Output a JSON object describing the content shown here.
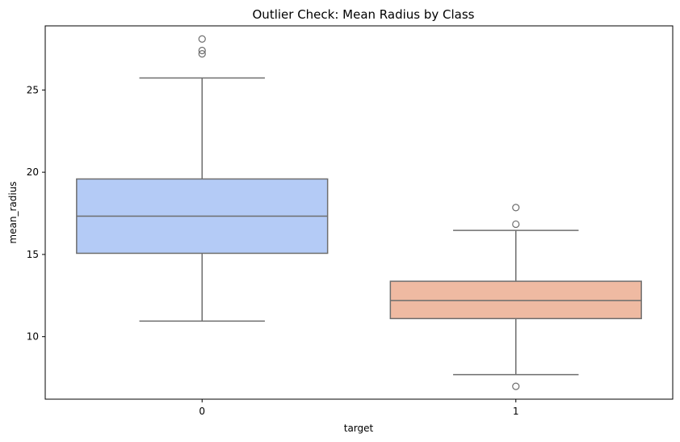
{
  "chart_data": {
    "type": "box",
    "title": "Outlier Check: Mean Radius by Class",
    "xlabel": "target",
    "ylabel": "mean_radius",
    "categories": [
      "0",
      "1"
    ],
    "ylim": [
      6.2,
      28.9
    ],
    "yticks": [
      10,
      15,
      20,
      25
    ],
    "ytick_labels": [
      "10",
      "15",
      "20",
      "25"
    ],
    "grid": false,
    "boxes": [
      {
        "category": "0",
        "whisker_low": 10.95,
        "q1": 15.07,
        "median": 17.33,
        "q3": 19.59,
        "whisker_high": 25.73,
        "outliers": [
          27.2,
          27.4,
          28.1
        ],
        "color": "#b4cbf6"
      },
      {
        "category": "1",
        "whisker_low": 7.69,
        "q1": 11.1,
        "median": 12.2,
        "q3": 13.37,
        "whisker_high": 16.46,
        "outliers": [
          6.98,
          16.84,
          17.85
        ],
        "color": "#efbaa2"
      }
    ],
    "line_color": "#6e6e6e"
  }
}
